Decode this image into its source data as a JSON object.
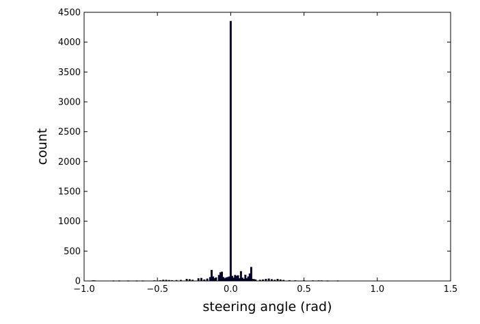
{
  "chart_data": {
    "type": "bar",
    "title": "",
    "xlabel": "steering angle (rad)",
    "ylabel": "count",
    "xlim": [
      -1.0,
      1.5
    ],
    "ylim": [
      0,
      4500
    ],
    "xticks": [
      -1.0,
      -0.5,
      0.0,
      0.5,
      1.0,
      1.5
    ],
    "xtick_labels": [
      "−1.0",
      "−0.5",
      "0.0",
      "0.5",
      "1.0",
      "1.5"
    ],
    "yticks": [
      0,
      500,
      1000,
      1500,
      2000,
      2500,
      3000,
      3500,
      4000,
      4500
    ],
    "ytick_labels": [
      "0",
      "500",
      "1000",
      "1500",
      "2000",
      "2500",
      "3000",
      "3500",
      "4000",
      "4500"
    ],
    "grid": false,
    "legend": false,
    "bar_color": "#00004d",
    "bin_width": 0.01,
    "bins": [
      {
        "x": -0.94,
        "count": 5
      },
      {
        "x": -0.93,
        "count": 5
      },
      {
        "x": -0.8,
        "count": 3
      },
      {
        "x": -0.76,
        "count": 3
      },
      {
        "x": -0.7,
        "count": 3
      },
      {
        "x": -0.64,
        "count": 3
      },
      {
        "x": -0.6,
        "count": 3
      },
      {
        "x": -0.52,
        "count": 5
      },
      {
        "x": -0.48,
        "count": 6
      },
      {
        "x": -0.46,
        "count": 15
      },
      {
        "x": -0.44,
        "count": 14
      },
      {
        "x": -0.42,
        "count": 10
      },
      {
        "x": -0.4,
        "count": 8
      },
      {
        "x": -0.37,
        "count": 10
      },
      {
        "x": -0.34,
        "count": 12
      },
      {
        "x": -0.3,
        "count": 30
      },
      {
        "x": -0.28,
        "count": 25
      },
      {
        "x": -0.26,
        "count": 15
      },
      {
        "x": -0.22,
        "count": 40
      },
      {
        "x": -0.2,
        "count": 45
      },
      {
        "x": -0.18,
        "count": 20
      },
      {
        "x": -0.16,
        "count": 35
      },
      {
        "x": -0.14,
        "count": 60
      },
      {
        "x": -0.13,
        "count": 180
      },
      {
        "x": -0.12,
        "count": 70
      },
      {
        "x": -0.11,
        "count": 40
      },
      {
        "x": -0.1,
        "count": 55
      },
      {
        "x": -0.08,
        "count": 95
      },
      {
        "x": -0.07,
        "count": 140
      },
      {
        "x": -0.06,
        "count": 150
      },
      {
        "x": -0.05,
        "count": 60
      },
      {
        "x": -0.04,
        "count": 40
      },
      {
        "x": -0.03,
        "count": 55
      },
      {
        "x": -0.02,
        "count": 60
      },
      {
        "x": -0.01,
        "count": 70
      },
      {
        "x": 0.0,
        "count": 4350
      },
      {
        "x": 0.01,
        "count": 80
      },
      {
        "x": 0.02,
        "count": 50
      },
      {
        "x": 0.03,
        "count": 95
      },
      {
        "x": 0.04,
        "count": 80
      },
      {
        "x": 0.05,
        "count": 90
      },
      {
        "x": 0.06,
        "count": 40
      },
      {
        "x": 0.07,
        "count": 160
      },
      {
        "x": 0.08,
        "count": 50
      },
      {
        "x": 0.09,
        "count": 30
      },
      {
        "x": 0.1,
        "count": 100
      },
      {
        "x": 0.11,
        "count": 40
      },
      {
        "x": 0.12,
        "count": 70
      },
      {
        "x": 0.13,
        "count": 120
      },
      {
        "x": 0.14,
        "count": 230
      },
      {
        "x": 0.15,
        "count": 30
      },
      {
        "x": 0.16,
        "count": 25
      },
      {
        "x": 0.17,
        "count": 20
      },
      {
        "x": 0.2,
        "count": 15
      },
      {
        "x": 0.22,
        "count": 20
      },
      {
        "x": 0.24,
        "count": 30
      },
      {
        "x": 0.26,
        "count": 35
      },
      {
        "x": 0.28,
        "count": 25
      },
      {
        "x": 0.3,
        "count": 15
      },
      {
        "x": 0.32,
        "count": 30
      },
      {
        "x": 0.34,
        "count": 20
      },
      {
        "x": 0.36,
        "count": 12
      },
      {
        "x": 0.4,
        "count": 8
      },
      {
        "x": 0.44,
        "count": 5
      },
      {
        "x": 0.5,
        "count": 5
      },
      {
        "x": 0.56,
        "count": 4
      },
      {
        "x": 0.6,
        "count": 5
      },
      {
        "x": 0.62,
        "count": 4
      },
      {
        "x": 0.66,
        "count": 3
      },
      {
        "x": 0.73,
        "count": 3
      }
    ]
  }
}
